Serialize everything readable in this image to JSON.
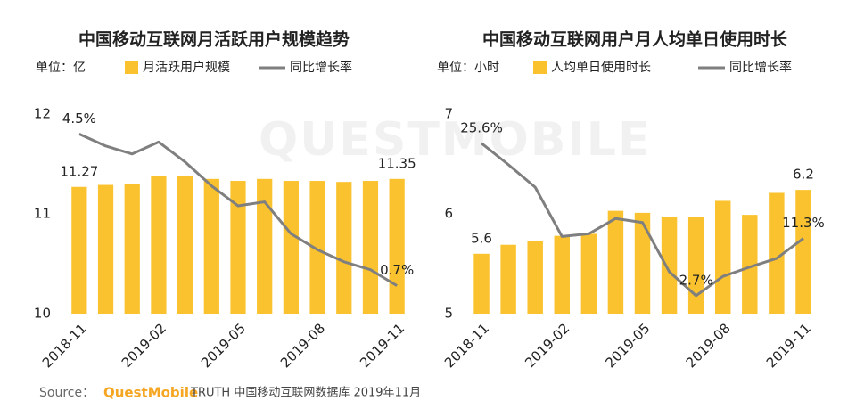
{
  "chart_data": [
    {
      "type": "bar",
      "title": "中国移动互联网月活跃用户规模趋势",
      "y_label": "单位：亿",
      "categories": [
        "2018-11",
        null,
        null,
        "2019-02",
        null,
        null,
        "2019-05",
        null,
        null,
        "2019-08",
        null,
        null,
        "2019-11"
      ],
      "series": [
        {
          "name": "月活跃用户规模",
          "type": "bar",
          "color": "#f9c22e",
          "values": [
            11.27,
            11.29,
            11.3,
            11.38,
            11.38,
            11.35,
            11.33,
            11.35,
            11.33,
            11.33,
            11.32,
            11.33,
            11.35
          ],
          "value_labels": [
            "11.27",
            null,
            null,
            null,
            null,
            null,
            null,
            null,
            null,
            null,
            null,
            null,
            "11.35"
          ]
        },
        {
          "name": "同比增长率",
          "type": "line",
          "axis": "y2",
          "color": "#7f7f7f",
          "values": [
            4.5,
            4.2,
            4.0,
            4.3,
            3.8,
            3.2,
            2.7,
            2.8,
            2.0,
            1.6,
            1.3,
            1.1,
            0.7
          ],
          "value_labels": [
            "4.5%",
            null,
            null,
            null,
            null,
            null,
            null,
            null,
            null,
            null,
            null,
            null,
            "0.7%"
          ]
        }
      ],
      "ylim": [
        10,
        12
      ],
      "yticks": [
        10,
        11,
        12
      ],
      "y2lim": [
        0,
        5
      ],
      "grid": false
    },
    {
      "type": "bar",
      "title": "中国移动互联网用户月人均单日使用时长",
      "y_label": "单位：小时",
      "categories": [
        "2018-11",
        null,
        null,
        "2019-02",
        null,
        null,
        "2019-05",
        null,
        null,
        "2019-08",
        null,
        null,
        "2019-11"
      ],
      "series": [
        {
          "name": "人均单日使用时长",
          "type": "bar",
          "color": "#f9c22e",
          "values": [
            5.6,
            5.69,
            5.73,
            5.78,
            5.8,
            6.03,
            6.01,
            5.97,
            5.97,
            6.13,
            5.99,
            6.21,
            6.24
          ],
          "value_labels": [
            "5.6",
            null,
            null,
            null,
            null,
            null,
            null,
            null,
            null,
            null,
            null,
            null,
            "6.2"
          ]
        },
        {
          "name": "同比增长率",
          "type": "line",
          "axis": "y2",
          "color": "#7f7f7f",
          "values": [
            25.6,
            22.4,
            19.0,
            11.6,
            12.0,
            14.3,
            13.7,
            6.3,
            2.7,
            5.6,
            7.0,
            8.3,
            11.3
          ],
          "value_labels": [
            "25.6%",
            null,
            null,
            null,
            null,
            null,
            null,
            null,
            "2.7%",
            null,
            null,
            null,
            "11.3%"
          ]
        }
      ],
      "ylim": [
        5,
        7
      ],
      "yticks": [
        5,
        6,
        7
      ],
      "y2lim": [
        0,
        30
      ],
      "grid": false
    }
  ],
  "watermark": "QUESTMOBILE",
  "source": {
    "prefix": "Source：",
    "brand": "QuestMobile",
    "text": "TRUTH 中国移动互联网数据库 2019年11月"
  }
}
